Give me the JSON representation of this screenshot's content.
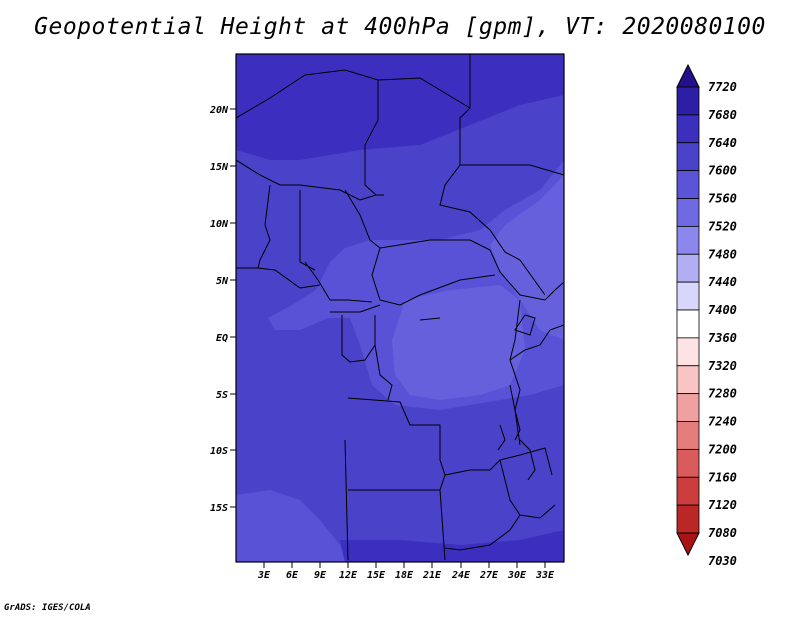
{
  "title": "Geopotential Height at 400hPa [gpm], VT: 2020080100",
  "credit": "GrADS: IGES/COLA",
  "lat_ticks": [
    "20N",
    "15N",
    "10N",
    "5N",
    "EQ",
    "5S",
    "10S",
    "15S"
  ],
  "lon_ticks": [
    "3E",
    "6E",
    "9E",
    "12E",
    "15E",
    "18E",
    "21E",
    "24E",
    "27E",
    "30E",
    "33E"
  ],
  "colorbar": {
    "levels": [
      "7720",
      "7680",
      "7640",
      "7600",
      "7560",
      "7520",
      "7480",
      "7440",
      "7400",
      "7360",
      "7320",
      "7280",
      "7240",
      "7200",
      "7160",
      "7120",
      "7080",
      "7030"
    ],
    "colors": [
      "#24108c",
      "#2c1fa4",
      "#3b2fbc",
      "#4a42c8",
      "#5c54d6",
      "#6f6ae2",
      "#8c87ec",
      "#b2aef4",
      "#d8d6fa",
      "#ffffff",
      "#fde3e3",
      "#f8c4c4",
      "#f0a0a0",
      "#e67d7d",
      "#da5b5b",
      "#cc3d3d",
      "#bb2626",
      "#a81414"
    ]
  },
  "regions": {
    "north_dark": "#3c2fbf",
    "mid": "#4a42c8",
    "light": "#5a52d6",
    "lighter": "#6660dc"
  }
}
